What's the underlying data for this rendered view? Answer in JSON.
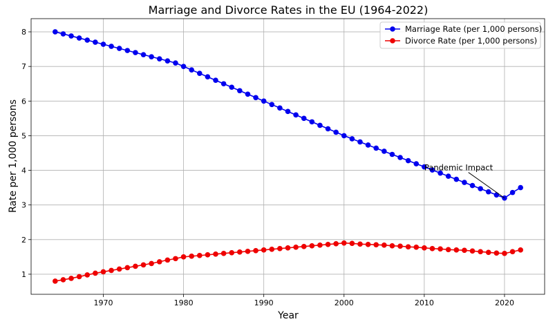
{
  "chart_data": {
    "type": "line",
    "title": "Marriage and Divorce Rates in the EU (1964-2022)",
    "xlabel": "Year",
    "ylabel": "Rate per 1,000 persons",
    "xlim": [
      1961,
      2025
    ],
    "ylim": [
      0.42,
      8.38
    ],
    "xticks": [
      1970,
      1980,
      1990,
      2000,
      2010,
      2020
    ],
    "yticks": [
      1,
      2,
      3,
      4,
      5,
      6,
      7,
      8
    ],
    "grid": true,
    "legend_position": "top-right",
    "x": [
      1964,
      1965,
      1966,
      1967,
      1968,
      1969,
      1970,
      1971,
      1972,
      1973,
      1974,
      1975,
      1976,
      1977,
      1978,
      1979,
      1980,
      1981,
      1982,
      1983,
      1984,
      1985,
      1986,
      1987,
      1988,
      1989,
      1990,
      1991,
      1992,
      1993,
      1994,
      1995,
      1996,
      1997,
      1998,
      1999,
      2000,
      2001,
      2002,
      2003,
      2004,
      2005,
      2006,
      2007,
      2008,
      2009,
      2010,
      2011,
      2012,
      2013,
      2014,
      2015,
      2016,
      2017,
      2018,
      2019,
      2020,
      2021,
      2022
    ],
    "series": [
      {
        "name": "Marriage Rate (per 1,000 persons)",
        "color": "#0000ee",
        "values": [
          8.0,
          7.94,
          7.88,
          7.82,
          7.76,
          7.7,
          7.64,
          7.58,
          7.52,
          7.46,
          7.4,
          7.34,
          7.28,
          7.22,
          7.16,
          7.1,
          7.0,
          6.9,
          6.8,
          6.7,
          6.6,
          6.5,
          6.4,
          6.3,
          6.2,
          6.1,
          6.0,
          5.9,
          5.8,
          5.7,
          5.6,
          5.5,
          5.4,
          5.3,
          5.2,
          5.1,
          5.0,
          4.91,
          4.82,
          4.73,
          4.64,
          4.55,
          4.46,
          4.37,
          4.28,
          4.19,
          4.1,
          4.01,
          3.92,
          3.83,
          3.74,
          3.65,
          3.56,
          3.47,
          3.38,
          3.29,
          3.2,
          3.36,
          3.5
        ]
      },
      {
        "name": "Divorce Rate (per 1,000 persons)",
        "color": "#ee0000",
        "values": [
          0.8,
          0.84,
          0.88,
          0.93,
          0.98,
          1.03,
          1.07,
          1.11,
          1.15,
          1.19,
          1.23,
          1.27,
          1.31,
          1.36,
          1.41,
          1.45,
          1.5,
          1.52,
          1.54,
          1.56,
          1.58,
          1.6,
          1.62,
          1.64,
          1.66,
          1.68,
          1.7,
          1.72,
          1.74,
          1.76,
          1.78,
          1.8,
          1.82,
          1.84,
          1.86,
          1.88,
          1.9,
          1.89,
          1.87,
          1.86,
          1.85,
          1.84,
          1.82,
          1.81,
          1.79,
          1.78,
          1.76,
          1.74,
          1.73,
          1.71,
          1.7,
          1.69,
          1.67,
          1.65,
          1.63,
          1.61,
          1.6,
          1.65,
          1.7
        ]
      }
    ],
    "annotations": [
      {
        "text": "Pandemic Impact",
        "x": 2020,
        "y": 3.2,
        "text_x": 2010,
        "text_y": 4.0
      }
    ]
  }
}
